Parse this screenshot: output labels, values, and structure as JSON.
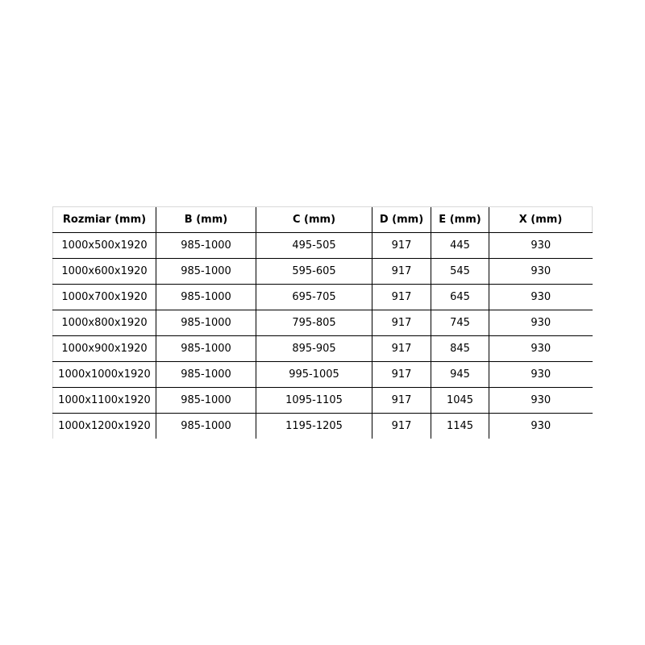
{
  "table": {
    "headers": [
      "Rozmiar (mm)",
      "B (mm)",
      "C (mm)",
      "D (mm)",
      "E (mm)",
      "X (mm)"
    ],
    "rows": [
      [
        "1000x500x1920",
        "985-1000",
        "495-505",
        "917",
        "445",
        "930"
      ],
      [
        "1000x600x1920",
        "985-1000",
        "595-605",
        "917",
        "545",
        "930"
      ],
      [
        "1000x700x1920",
        "985-1000",
        "695-705",
        "917",
        "645",
        "930"
      ],
      [
        "1000x800x1920",
        "985-1000",
        "795-805",
        "917",
        "745",
        "930"
      ],
      [
        "1000x900x1920",
        "985-1000",
        "895-905",
        "917",
        "845",
        "930"
      ],
      [
        "1000x1000x1920",
        "985-1000",
        "995-1005",
        "917",
        "945",
        "930"
      ],
      [
        "1000x1100x1920",
        "985-1000",
        "1095-1105",
        "917",
        "1045",
        "930"
      ],
      [
        "1000x1200x1920",
        "985-1000",
        "1195-1205",
        "917",
        "1145",
        "930"
      ]
    ]
  }
}
